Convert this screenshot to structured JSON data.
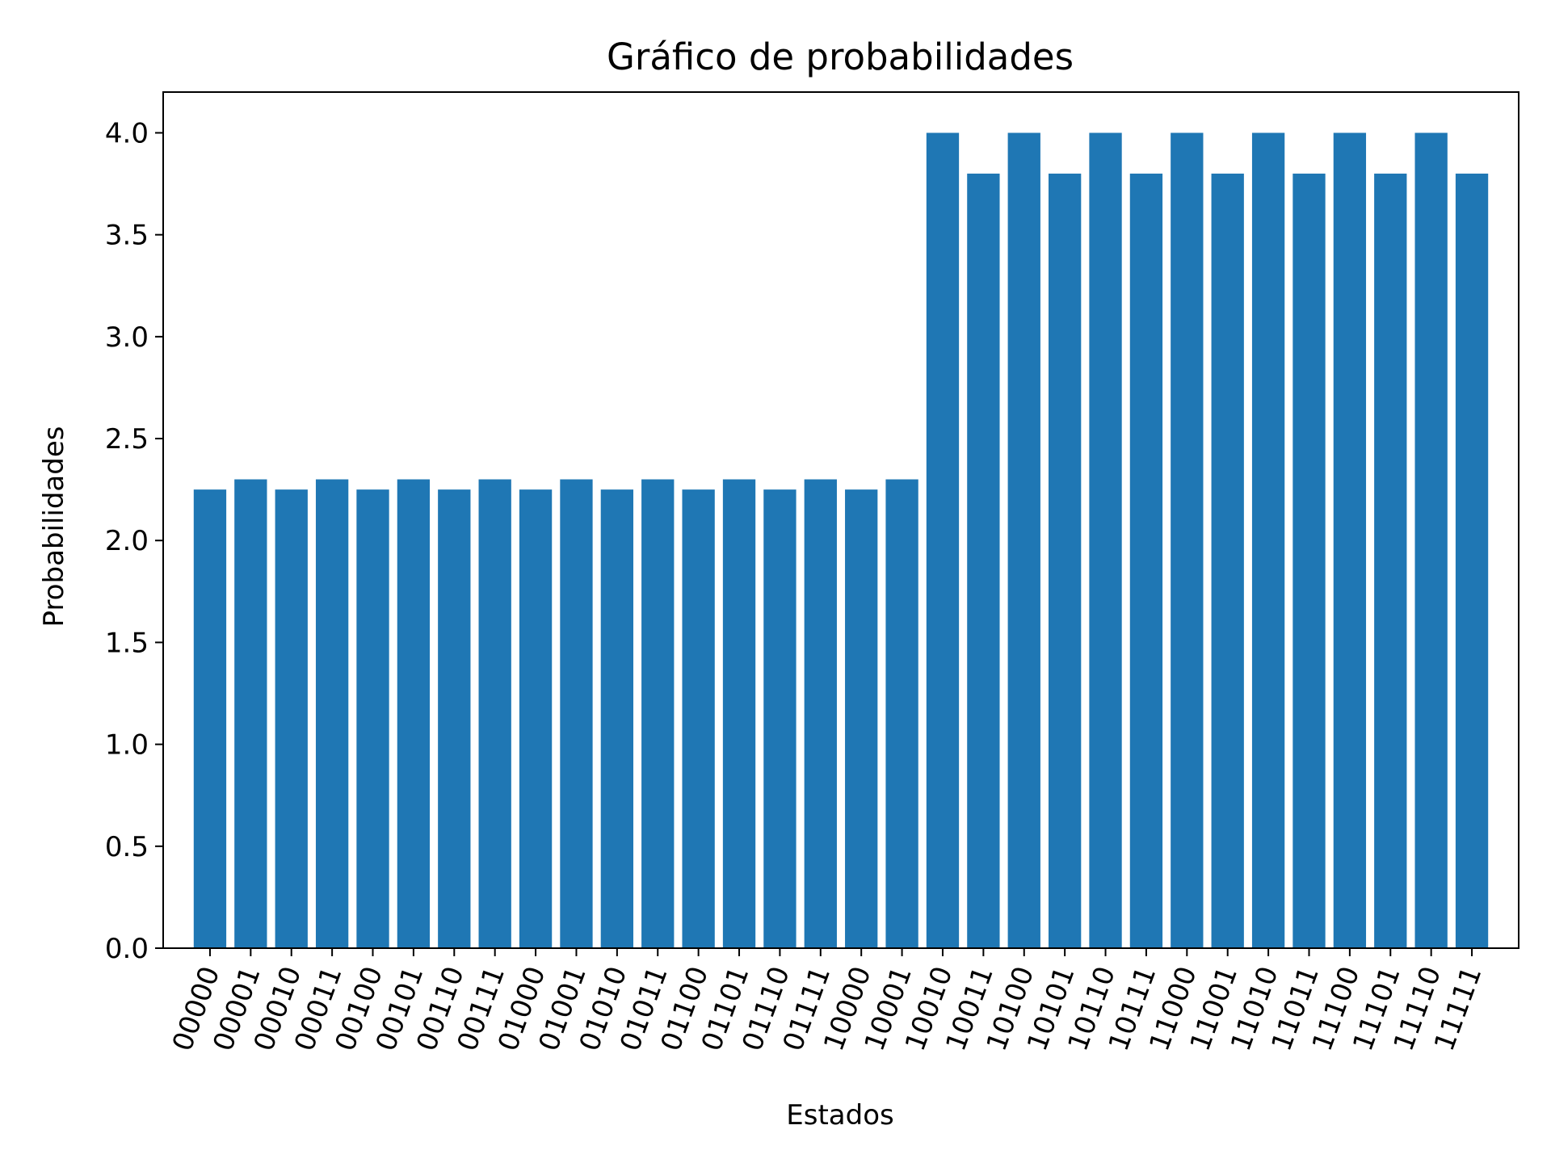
{
  "chart_data": {
    "type": "bar",
    "title": "Gráfico de probabilidades",
    "xlabel": "Estados",
    "ylabel": "Probabilidades",
    "ylim": [
      0,
      4.2
    ],
    "yticks": [
      "0.0",
      "0.5",
      "1.0",
      "1.5",
      "2.0",
      "2.5",
      "3.0",
      "3.5",
      "4.0"
    ],
    "categories": [
      "00000",
      "00001",
      "00010",
      "00011",
      "00100",
      "00101",
      "00110",
      "00111",
      "01000",
      "01001",
      "01010",
      "01011",
      "01100",
      "01101",
      "01110",
      "01111",
      "10000",
      "10001",
      "10010",
      "10011",
      "10100",
      "10101",
      "10110",
      "10111",
      "11000",
      "11001",
      "11010",
      "11011",
      "11100",
      "11101",
      "11110",
      "11111"
    ],
    "values": [
      2.25,
      2.3,
      2.25,
      2.3,
      2.25,
      2.3,
      2.25,
      2.3,
      2.25,
      2.3,
      2.25,
      2.3,
      2.25,
      2.3,
      2.25,
      2.3,
      2.25,
      2.3,
      4.0,
      3.8,
      4.0,
      3.8,
      4.0,
      3.8,
      4.0,
      3.8,
      4.0,
      3.8,
      4.0,
      3.8,
      4.0,
      3.8
    ],
    "bar_color": "#1f77b4",
    "grid": false,
    "legend": "none"
  }
}
